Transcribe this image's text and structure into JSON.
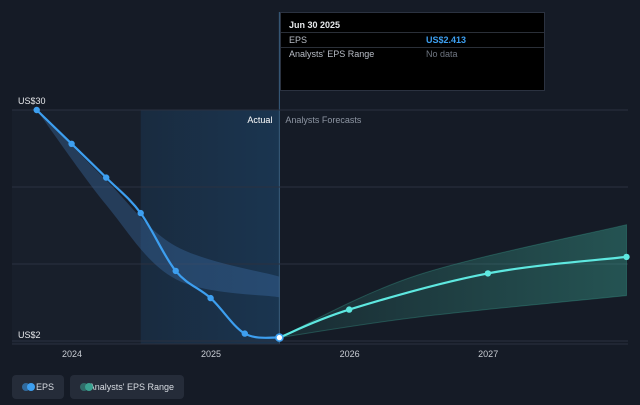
{
  "chart_data": {
    "type": "line",
    "title": "",
    "xlabel": "",
    "ylabel": "",
    "x_ticks": [
      "2024",
      "2025",
      "2026",
      "2027"
    ],
    "y_labels": [
      "US$30",
      "US$2"
    ],
    "ylim": [
      2,
      30
    ],
    "divider_labels": {
      "actual": "Actual",
      "forecast": "Analysts Forecasts"
    },
    "series": [
      {
        "name": "EPS",
        "kind": "actual",
        "color": "#3d9ff0",
        "points": [
          {
            "x": "2023-09-30",
            "y": 30.0
          },
          {
            "x": "2023-12-31",
            "y": 25.9
          },
          {
            "x": "2024-03-31",
            "y": 21.8
          },
          {
            "x": "2024-06-30",
            "y": 17.5
          },
          {
            "x": "2024-09-30",
            "y": 10.5
          },
          {
            "x": "2024-12-31",
            "y": 7.2
          },
          {
            "x": "2025-03-31",
            "y": 2.9
          },
          {
            "x": "2025-06-30",
            "y": 2.413
          }
        ]
      },
      {
        "name": "EPS",
        "kind": "forecast",
        "color": "#5ee8e0",
        "points": [
          {
            "x": "2025-06-30",
            "y": 2.413
          },
          {
            "x": "2025-12-31",
            "y": 5.8
          },
          {
            "x": "2026-12-31",
            "y": 10.2
          },
          {
            "x": "2027-12-31",
            "y": 12.2
          }
        ]
      },
      {
        "name": "Analysts' EPS Range",
        "kind": "range",
        "color": "#3aa190",
        "band_backcast_low": [
          {
            "x": "2023-09-30",
            "y": 30.0
          },
          {
            "x": "2024-03-31",
            "y": 18.5
          },
          {
            "x": "2024-09-30",
            "y": 9.5
          },
          {
            "x": "2025-06-30",
            "y": 7.3
          }
        ],
        "band_backcast_high": [
          {
            "x": "2023-09-30",
            "y": 30.0
          },
          {
            "x": "2024-03-31",
            "y": 21.5
          },
          {
            "x": "2024-09-30",
            "y": 13.5
          },
          {
            "x": "2025-06-30",
            "y": 9.8
          }
        ],
        "band_forecast_low": [
          {
            "x": "2025-06-30",
            "y": 2.413
          },
          {
            "x": "2026-06-30",
            "y": 4.9
          },
          {
            "x": "2027-12-31",
            "y": 7.5
          }
        ],
        "band_forecast_high": [
          {
            "x": "2025-06-30",
            "y": 2.413
          },
          {
            "x": "2026-06-30",
            "y": 10.0
          },
          {
            "x": "2027-12-31",
            "y": 16.1
          }
        ]
      }
    ],
    "highlight_range": [
      "2024-06-30",
      "2025-06-30"
    ],
    "grid": true
  },
  "tooltip": {
    "date": "Jun 30 2025",
    "rows": [
      {
        "label": "EPS",
        "value": "US$2.413"
      },
      {
        "label": "Analysts' EPS Range",
        "value": "No data"
      }
    ]
  },
  "legend": [
    {
      "label": "EPS",
      "color": "#3d9ff0"
    },
    {
      "label": "Analysts' EPS Range",
      "color": "#3aa190"
    }
  ],
  "colors": {
    "background": "#151b26",
    "past_shade": "#181f2b",
    "highlight": "#1a3550",
    "grid": "#2a3140"
  }
}
